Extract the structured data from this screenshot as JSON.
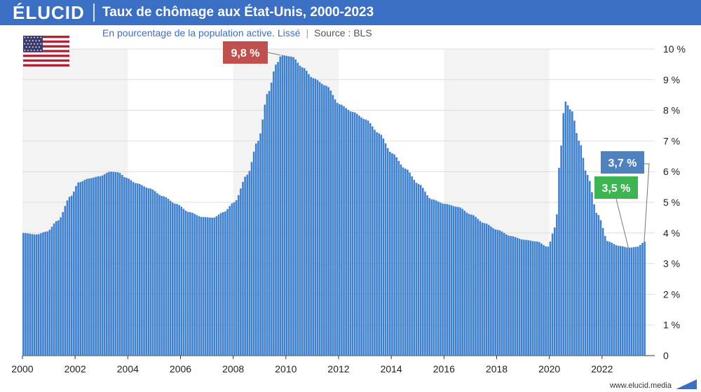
{
  "header": {
    "logo": "ÉLUCID",
    "title": "Taux de chômage aux État-Unis, 2000-2023"
  },
  "subtitle": {
    "text": "En pourcentage de la population active. Lissé",
    "source": "Source : BLS"
  },
  "footer": {
    "url": "www.elucid.media"
  },
  "flag": {
    "icon": "us-flag-icon"
  },
  "colors": {
    "bar": "#3d80cf",
    "header": "#3a6fc4",
    "band": "#f3f3f3",
    "callout_peak": "#c0504d",
    "callout_last": "#4f81bd",
    "callout_min": "#3cb552"
  },
  "chart_data": {
    "type": "bar",
    "title": "Taux de chômage aux État-Unis, 2000-2023",
    "subtitle": "En pourcentage de la population active. Lissé",
    "xlabel": "",
    "ylabel": "",
    "x_ticks": [
      "2000",
      "2002",
      "2004",
      "2006",
      "2008",
      "2010",
      "2012",
      "2014",
      "2016",
      "2018",
      "2020",
      "2022"
    ],
    "y_ticks": [
      "0",
      "1 %",
      "2 %",
      "3 %",
      "4 %",
      "5 %",
      "6 %",
      "7 %",
      "8 %",
      "9 %",
      "10 %"
    ],
    "ylim": [
      0,
      10
    ],
    "xlim": [
      2000,
      2024
    ],
    "grid": true,
    "frequency": "monthly",
    "start": "2000-01",
    "keyframes": [
      [
        2000.0,
        4.0
      ],
      [
        2000.5,
        3.95
      ],
      [
        2000.9,
        4.05
      ],
      [
        2001.3,
        4.4
      ],
      [
        2001.8,
        5.2
      ],
      [
        2002.1,
        5.65
      ],
      [
        2002.5,
        5.78
      ],
      [
        2002.9,
        5.85
      ],
      [
        2003.3,
        6.0
      ],
      [
        2003.6,
        5.98
      ],
      [
        2003.9,
        5.8
      ],
      [
        2004.3,
        5.62
      ],
      [
        2004.8,
        5.45
      ],
      [
        2005.3,
        5.2
      ],
      [
        2005.8,
        4.95
      ],
      [
        2006.3,
        4.68
      ],
      [
        2006.8,
        4.52
      ],
      [
        2007.2,
        4.5
      ],
      [
        2007.6,
        4.68
      ],
      [
        2008.0,
        5.0
      ],
      [
        2008.5,
        5.9
      ],
      [
        2008.9,
        7.0
      ],
      [
        2009.3,
        8.6
      ],
      [
        2009.6,
        9.5
      ],
      [
        2009.8,
        9.8
      ],
      [
        2010.2,
        9.75
      ],
      [
        2010.6,
        9.4
      ],
      [
        2011.0,
        9.05
      ],
      [
        2011.5,
        8.8
      ],
      [
        2012.0,
        8.2
      ],
      [
        2012.5,
        7.95
      ],
      [
        2013.0,
        7.7
      ],
      [
        2013.5,
        7.25
      ],
      [
        2014.0,
        6.6
      ],
      [
        2014.5,
        6.1
      ],
      [
        2015.0,
        5.6
      ],
      [
        2015.5,
        5.1
      ],
      [
        2016.0,
        4.95
      ],
      [
        2016.5,
        4.85
      ],
      [
        2017.0,
        4.6
      ],
      [
        2017.5,
        4.32
      ],
      [
        2018.0,
        4.1
      ],
      [
        2018.5,
        3.9
      ],
      [
        2019.0,
        3.78
      ],
      [
        2019.5,
        3.72
      ],
      [
        2019.9,
        3.55
      ],
      [
        2020.2,
        4.2
      ],
      [
        2020.4,
        6.8
      ],
      [
        2020.55,
        8.3
      ],
      [
        2020.8,
        8.0
      ],
      [
        2021.1,
        7.0
      ],
      [
        2021.4,
        5.9
      ],
      [
        2021.8,
        4.6
      ],
      [
        2022.2,
        3.72
      ],
      [
        2022.6,
        3.58
      ],
      [
        2023.0,
        3.52
      ],
      [
        2023.3,
        3.55
      ],
      [
        2023.6,
        3.72
      ]
    ],
    "bands": [
      [
        2000,
        2004
      ],
      [
        2008,
        2012
      ],
      [
        2016,
        2020
      ]
    ],
    "annotations": [
      {
        "label": "9,8 %",
        "x": 2009.8,
        "y": 9.8
      },
      {
        "label": "3,7 %",
        "x": 2023.6,
        "y": 3.7
      },
      {
        "label": "3,5 %",
        "x": 2023.0,
        "y": 3.52
      }
    ]
  }
}
